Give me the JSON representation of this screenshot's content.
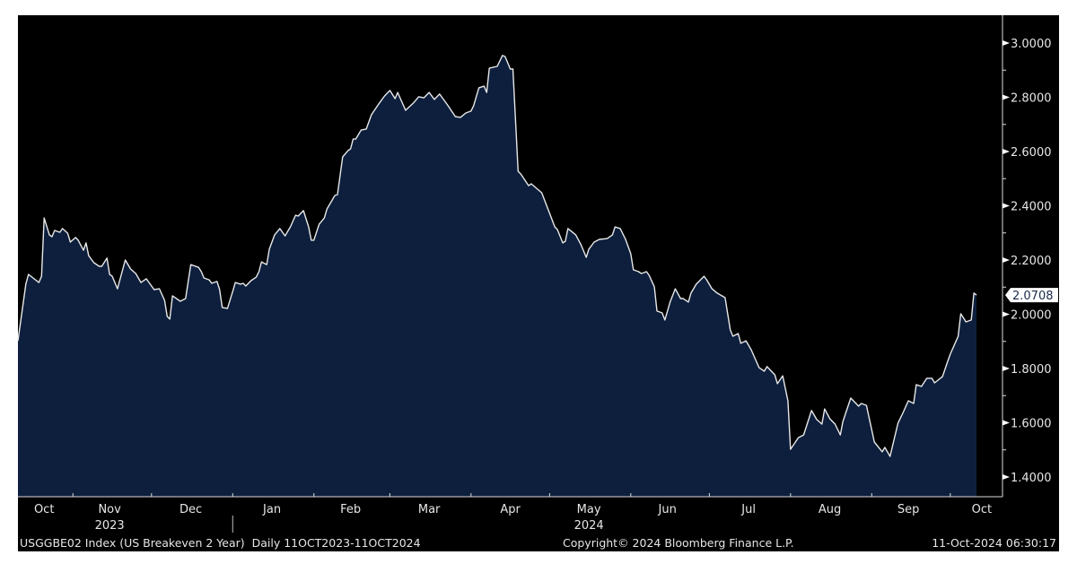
{
  "chart_data": {
    "type": "area",
    "title": "",
    "xlabel": "",
    "ylabel": "",
    "ylim": [
      1.33,
      3.1
    ],
    "xlim": [
      "2023-10-11",
      "2024-10-11"
    ],
    "grid": false,
    "legend": "none",
    "y_axis_side": "right",
    "y_ticks": [
      "3.0000",
      "2.8000",
      "2.6000",
      "2.4000",
      "2.2000",
      "2.0000",
      "1.8000",
      "1.6000",
      "1.4000"
    ],
    "x_month_labels": [
      {
        "label": "Oct",
        "date": "2023-10-21"
      },
      {
        "label": "Nov",
        "date": "2023-11-15"
      },
      {
        "label": "Dec",
        "date": "2023-12-16"
      },
      {
        "label": "Jan",
        "date": "2024-01-16"
      },
      {
        "label": "Feb",
        "date": "2024-02-15"
      },
      {
        "label": "Mar",
        "date": "2024-03-16"
      },
      {
        "label": "Apr",
        "date": "2024-04-16"
      },
      {
        "label": "May",
        "date": "2024-05-16"
      },
      {
        "label": "Jun",
        "date": "2024-06-15"
      },
      {
        "label": "Jul",
        "date": "2024-07-16"
      },
      {
        "label": "Aug",
        "date": "2024-08-16"
      },
      {
        "label": "Sep",
        "date": "2024-09-15"
      },
      {
        "label": "Oct",
        "date": "2024-10-13"
      }
    ],
    "x_year_labels": [
      {
        "label": "2023",
        "date": "2023-11-15"
      },
      {
        "label": "2024",
        "date": "2024-05-16"
      }
    ],
    "last_value_label": "2.0708",
    "colors": {
      "background": "#000000",
      "fill": "#0d1f3d",
      "line": "#e8e8e8",
      "text": "#e6e6e6"
    },
    "series": [
      {
        "x": [
          "2023-10-11",
          "2023-10-14",
          "2023-10-15",
          "2023-10-19",
          "2023-10-20",
          "2023-10-21",
          "2023-10-23",
          "2023-10-24",
          "2023-10-25",
          "2023-10-27",
          "2023-10-28",
          "2023-10-30",
          "2023-10-31",
          "2023-11-02",
          "2023-11-03",
          "2023-11-05",
          "2023-11-06",
          "2023-11-07",
          "2023-11-09",
          "2023-11-11",
          "2023-11-12",
          "2023-11-14",
          "2023-11-15",
          "2023-11-16",
          "2023-11-18",
          "2023-11-21",
          "2023-11-23",
          "2023-11-25",
          "2023-11-27",
          "2023-11-29",
          "2023-12-02",
          "2023-12-04",
          "2023-12-06",
          "2023-12-07",
          "2023-12-08",
          "2023-12-09",
          "2023-12-12",
          "2023-12-14",
          "2023-12-16",
          "2023-12-19",
          "2023-12-20",
          "2023-12-21",
          "2023-12-23",
          "2023-12-24",
          "2023-12-26",
          "2023-12-27",
          "2023-12-28",
          "2023-12-30",
          "2024-01-01",
          "2024-01-02",
          "2024-01-04",
          "2024-01-05",
          "2024-01-06",
          "2024-01-08",
          "2024-01-10",
          "2024-01-11",
          "2024-01-12",
          "2024-01-14",
          "2024-01-15",
          "2024-01-17",
          "2024-01-19",
          "2024-01-21",
          "2024-01-23",
          "2024-01-25",
          "2024-01-26",
          "2024-01-28",
          "2024-01-30",
          "2024-01-31",
          "2024-02-01",
          "2024-02-03",
          "2024-02-05",
          "2024-02-06",
          "2024-02-09",
          "2024-02-10",
          "2024-02-12",
          "2024-02-14",
          "2024-02-15",
          "2024-02-16",
          "2024-02-17",
          "2024-02-19",
          "2024-02-21",
          "2024-02-23",
          "2024-02-26",
          "2024-02-28",
          "2024-03-01",
          "2024-03-03",
          "2024-03-04",
          "2024-03-07",
          "2024-03-10",
          "2024-03-12",
          "2024-03-14",
          "2024-03-16",
          "2024-03-18",
          "2024-03-20",
          "2024-03-23",
          "2024-03-26",
          "2024-03-28",
          "2024-03-30",
          "2024-04-01",
          "2024-04-02",
          "2024-04-04",
          "2024-04-06",
          "2024-04-07",
          "2024-04-08",
          "2024-04-11",
          "2024-04-13",
          "2024-04-14",
          "2024-04-16",
          "2024-04-17",
          "2024-04-19",
          "2024-04-20",
          "2024-04-23",
          "2024-04-24",
          "2024-04-28",
          "2024-05-01",
          "2024-05-03",
          "2024-05-04",
          "2024-05-06",
          "2024-05-07",
          "2024-05-08",
          "2024-05-11",
          "2024-05-13",
          "2024-05-15",
          "2024-05-16",
          "2024-05-18",
          "2024-05-20",
          "2024-05-23",
          "2024-05-25",
          "2024-05-26",
          "2024-05-28",
          "2024-05-30",
          "2024-06-01",
          "2024-06-02",
          "2024-06-04",
          "2024-06-05",
          "2024-06-07",
          "2024-06-08",
          "2024-06-10",
          "2024-06-11",
          "2024-06-13",
          "2024-06-14",
          "2024-06-16",
          "2024-06-18",
          "2024-06-20",
          "2024-06-21",
          "2024-06-23",
          "2024-06-24",
          "2024-06-26",
          "2024-06-29",
          "2024-06-30",
          "2024-07-02",
          "2024-07-04",
          "2024-07-07",
          "2024-07-09",
          "2024-07-10",
          "2024-07-12",
          "2024-07-13",
          "2024-07-15",
          "2024-07-17",
          "2024-07-20",
          "2024-07-22",
          "2024-07-23",
          "2024-07-26",
          "2024-07-27",
          "2024-07-29",
          "2024-07-31",
          "2024-08-01",
          "2024-08-04",
          "2024-08-06",
          "2024-08-09",
          "2024-08-11",
          "2024-08-13",
          "2024-08-14",
          "2024-08-16",
          "2024-08-18",
          "2024-08-20",
          "2024-08-21",
          "2024-08-24",
          "2024-08-27",
          "2024-08-28",
          "2024-08-30",
          "2024-09-02",
          "2024-09-05",
          "2024-09-06",
          "2024-09-08",
          "2024-09-11",
          "2024-09-13",
          "2024-09-15",
          "2024-09-17",
          "2024-09-18",
          "2024-09-20",
          "2024-09-22",
          "2024-09-24",
          "2024-09-25",
          "2024-09-28",
          "2024-09-30",
          "2024-10-01",
          "2024-10-04",
          "2024-10-05",
          "2024-10-07",
          "2024-10-09",
          "2024-10-10",
          "2024-10-11"
        ],
        "values": [
          1.902,
          2.111,
          2.147,
          2.117,
          2.14,
          2.355,
          2.293,
          2.286,
          2.309,
          2.302,
          2.316,
          2.299,
          2.266,
          2.283,
          2.273,
          2.236,
          2.263,
          2.216,
          2.19,
          2.177,
          2.177,
          2.207,
          2.147,
          2.14,
          2.094,
          2.2,
          2.167,
          2.15,
          2.117,
          2.131,
          2.091,
          2.094,
          2.051,
          1.992,
          1.982,
          2.068,
          2.048,
          2.058,
          2.183,
          2.173,
          2.157,
          2.134,
          2.127,
          2.114,
          2.121,
          2.091,
          2.025,
          2.021,
          2.084,
          2.117,
          2.111,
          2.114,
          2.104,
          2.124,
          2.137,
          2.157,
          2.193,
          2.183,
          2.24,
          2.293,
          2.316,
          2.289,
          2.322,
          2.365,
          2.362,
          2.382,
          2.322,
          2.273,
          2.273,
          2.332,
          2.355,
          2.388,
          2.438,
          2.441,
          2.58,
          2.603,
          2.61,
          2.646,
          2.646,
          2.679,
          2.683,
          2.736,
          2.779,
          2.805,
          2.825,
          2.795,
          2.818,
          2.752,
          2.779,
          2.802,
          2.798,
          2.818,
          2.792,
          2.812,
          2.772,
          2.729,
          2.726,
          2.742,
          2.749,
          2.769,
          2.835,
          2.841,
          2.818,
          2.907,
          2.914,
          2.954,
          2.95,
          2.904,
          2.904,
          2.527,
          2.517,
          2.474,
          2.481,
          2.448,
          2.372,
          2.322,
          2.312,
          2.263,
          2.269,
          2.316,
          2.293,
          2.256,
          2.21,
          2.24,
          2.266,
          2.276,
          2.279,
          2.293,
          2.322,
          2.316,
          2.276,
          2.223,
          2.164,
          2.157,
          2.15,
          2.157,
          2.144,
          2.101,
          2.012,
          2.005,
          1.979,
          2.045,
          2.094,
          2.058,
          2.058,
          2.045,
          2.078,
          2.111,
          2.14,
          2.127,
          2.094,
          2.078,
          2.061,
          1.942,
          1.919,
          1.929,
          1.893,
          1.902,
          1.869,
          1.803,
          1.79,
          1.807,
          1.777,
          1.744,
          1.773,
          1.681,
          1.502,
          1.545,
          1.555,
          1.645,
          1.612,
          1.595,
          1.651,
          1.615,
          1.595,
          1.555,
          1.605,
          1.691,
          1.661,
          1.671,
          1.664,
          1.529,
          1.493,
          1.509,
          1.476,
          1.598,
          1.638,
          1.681,
          1.671,
          1.74,
          1.734,
          1.764,
          1.764,
          1.747,
          1.77,
          1.826,
          1.853,
          1.919,
          2.002,
          1.972,
          1.979,
          2.078,
          2.071
        ]
      }
    ]
  },
  "footer": {
    "security": "USGGBE02 Index (US Breakeven 2 Year)  Daily 11OCT2023-11OCT2024",
    "copyright": "Copyright© 2024 Bloomberg Finance L.P.",
    "timestamp": "11-Oct-2024 06:30:17"
  }
}
